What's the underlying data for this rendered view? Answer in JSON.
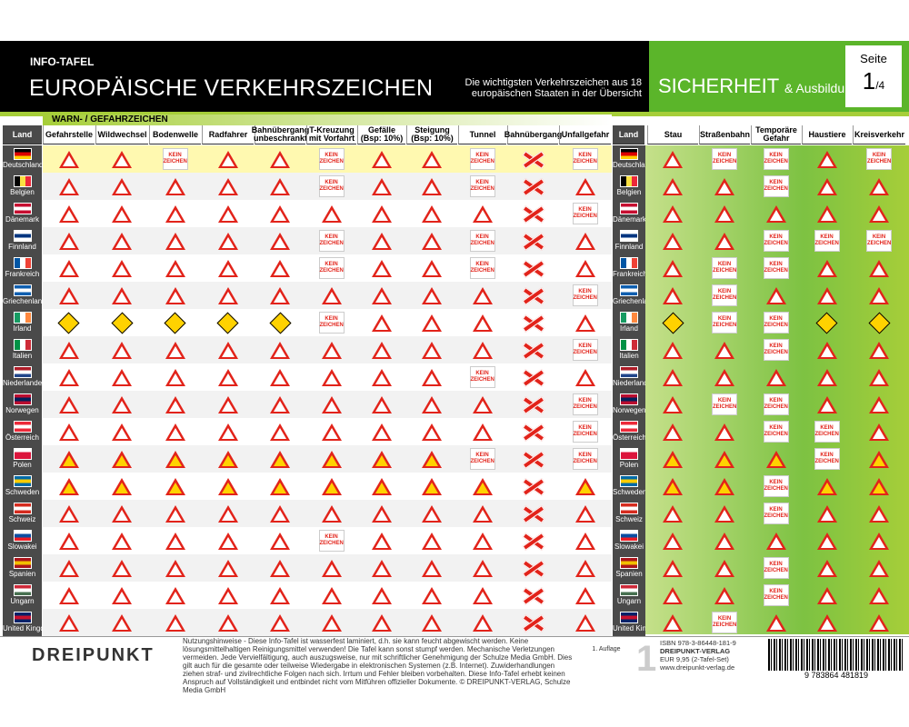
{
  "header": {
    "small": "INFO-TAFEL",
    "title": "EUROPÄISCHE VERKEHRSZEICHEN",
    "desc": "Die wichtigsten Verkehrszeichen aus 18 europäischen Staaten in der Übersicht",
    "series": "SICHERHEIT",
    "series_small": "& Ausbildung",
    "seite_label": "Seite",
    "seite_num": "1",
    "seite_total": "/4"
  },
  "category": "WARN- / GEFAHRZEICHEN",
  "land_label": "Land",
  "columns": [
    "Gefahrstelle",
    "Wildwechsel",
    "Bodenwelle",
    "Radfahrer",
    "Bahnübergang unbeschrankt",
    "T-Kreuzung mit Vorfahrt",
    "Gefälle (Bsp: 10%)",
    "Steigung (Bsp: 10%)",
    "Tunnel",
    "Bahnübergang",
    "Unfallgefahr"
  ],
  "columns2": [
    "Stau",
    "Straßenbahn",
    "Temporäre Gefahr",
    "Haustiere",
    "Kreisverkehr"
  ],
  "countries": [
    "Deutschland",
    "Belgien",
    "Dänemark",
    "Finnland",
    "Frankreich",
    "Griechenland",
    "Irland",
    "Italien",
    "Niederlande",
    "Norwegen",
    "Österreich",
    "Polen",
    "Schweden",
    "Schweiz",
    "Slowakei",
    "Spanien",
    "Ungarn",
    "United Kingdom"
  ],
  "kein_zeichen": "KEIN ZEICHEN",
  "footer": {
    "logo": "DREIPUNKT",
    "note": "Nutzungshinweise - Diese Info-Tafel ist wasserfest laminiert, d.h. sie kann feucht abgewischt werden. Keine lösungsmittelhaltigen Reinigungsmittel verwenden! Die Tafel kann sonst stumpf werden. Mechanische Verletzungen vermeiden. Jede Vervielfältigung, auch auszugsweise, nur mit schriftlicher Genehmigung der Schulze Media GmbH. Dies gilt auch für die gesamte oder teilweise Wiedergabe in elektronischen Systemen (z.B. Internet). Zuwiderhandlungen ziehen straf- und zivilrechtliche Folgen nach sich. Irrtum und Fehler bleiben vorbehalten. Diese Info-Tafel erhebt keinen Anspruch auf Vollständigkeit und entbindet nicht vom Mitführen offizieller Dokumente. © DREIPUNKT-VERLAG, Schulze Media GmbH",
    "auflage": "1. Auflage",
    "isbn": "ISBN 978-3-86448-181-9",
    "verlag": "DREIPUNKT-VERLAG",
    "preis": "EUR 9,95 (2-Tafel-Set)",
    "web": "www.dreipunkt-verlag.de",
    "barcode_num": "9 783864 481819"
  }
}
